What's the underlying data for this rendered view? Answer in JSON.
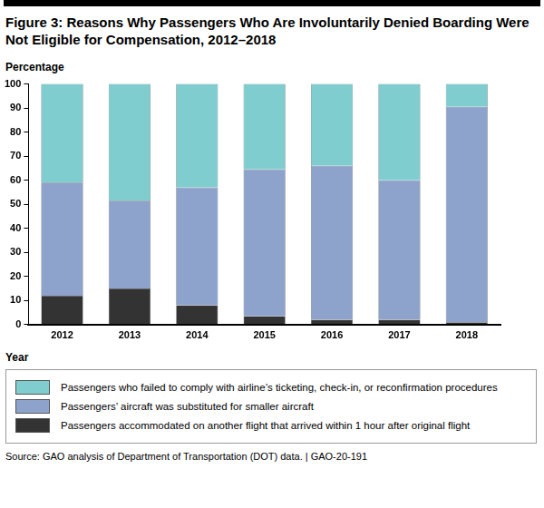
{
  "chart_data": {
    "type": "bar",
    "title": "Figure 3: Reasons Why Passengers Who Are Involuntarily Denied Boarding Were Not Eligible for Compensation, 2012–2018",
    "y_label": "Percentage",
    "x_label": "Year",
    "source": "Source: GAO analysis of Department of Transportation (DOT) data. | GAO-20-191",
    "categories": [
      "2012",
      "2013",
      "2014",
      "2015",
      "2016",
      "2017",
      "2018"
    ],
    "series": [
      {
        "name": "Passengers accommodated on another flight that arrived within 1 hour after original flight",
        "color": "#333333",
        "values": [
          12,
          15,
          8,
          3.5,
          2,
          2,
          1
        ]
      },
      {
        "name": "Passengers’ aircraft was substituted for smaller aircraft",
        "color": "#8da3cc",
        "values": [
          47,
          36.5,
          49,
          61,
          64,
          58,
          89.5
        ]
      },
      {
        "name": "Passengers who failed to comply with airline’s ticketing, check-in, or reconfirmation procedures",
        "color": "#80cdd0",
        "values": [
          41,
          48.5,
          43,
          35.5,
          34,
          40,
          9.5
        ]
      }
    ],
    "ylim": [
      0,
      100
    ],
    "yticks": [
      0,
      10,
      20,
      30,
      40,
      50,
      60,
      70,
      80,
      90,
      100
    ],
    "stacked": true,
    "grid": false,
    "legend": "bottom"
  }
}
